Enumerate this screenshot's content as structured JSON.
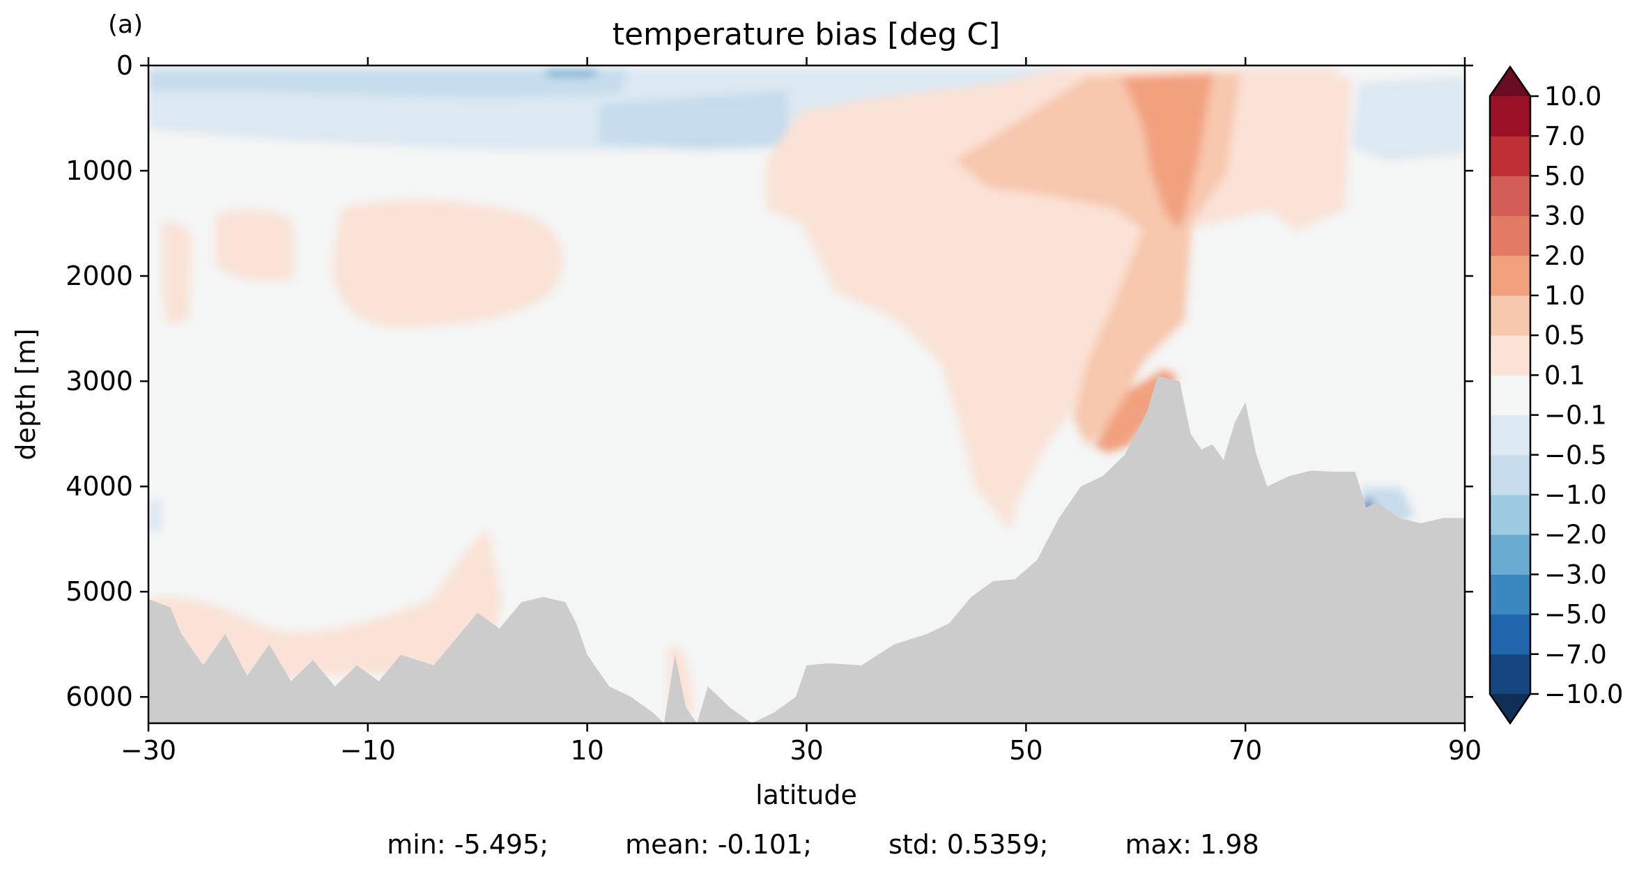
{
  "chart_data": {
    "type": "contourf",
    "panel_label": "(a)",
    "title": "temperature bias [deg C]",
    "xlabel": "latitude",
    "ylabel": "depth [m]",
    "xlim": [
      -30,
      90
    ],
    "ylim": [
      6250,
      0
    ],
    "y_inverted": true,
    "xticks": [
      -30,
      -10,
      10,
      30,
      50,
      70,
      90
    ],
    "xtick_labels": [
      "−30",
      "−10",
      "10",
      "30",
      "50",
      "70",
      "90"
    ],
    "yticks": [
      0,
      1000,
      2000,
      3000,
      4000,
      5000,
      6000
    ],
    "ytick_labels": [
      "0",
      "1000",
      "2000",
      "3000",
      "4000",
      "5000",
      "6000"
    ],
    "colorbar": {
      "extend": "both",
      "levels": [
        -10.0,
        -7.0,
        -5.0,
        -3.0,
        -2.0,
        -1.0,
        -0.5,
        -0.1,
        0.1,
        0.5,
        1.0,
        2.0,
        3.0,
        5.0,
        7.0,
        10.0
      ],
      "tick_labels": [
        "−10.0",
        "−7.0",
        "−5.0",
        "−3.0",
        "−2.0",
        "−1.0",
        "−0.5",
        "−0.1",
        "0.1",
        "0.5",
        "1.0",
        "2.0",
        "3.0",
        "5.0",
        "7.0",
        "10.0"
      ],
      "colors": [
        "#16467f",
        "#2166ac",
        "#3b88c0",
        "#6aabd2",
        "#9dc9e1",
        "#c6dcec",
        "#dce8f2",
        "#f4f5f5",
        "#fae2d6",
        "#f7c7ae",
        "#f2a17f",
        "#e27b63",
        "#d25f55",
        "#be3036",
        "#9a1128"
      ],
      "under_color": "#0f2f57",
      "over_color": "#6a0d21"
    },
    "land_color": "#cccccc",
    "colormap": "RdBu_r",
    "bathymetry": [
      [
        -30,
        5070
      ],
      [
        -28,
        5150
      ],
      [
        -27,
        5400
      ],
      [
        -25,
        5700
      ],
      [
        -23,
        5400
      ],
      [
        -21,
        5800
      ],
      [
        -19,
        5500
      ],
      [
        -17,
        5850
      ],
      [
        -15,
        5650
      ],
      [
        -13,
        5900
      ],
      [
        -11,
        5700
      ],
      [
        -9,
        5850
      ],
      [
        -7,
        5600
      ],
      [
        -4,
        5700
      ],
      [
        -2,
        5450
      ],
      [
        0,
        5200
      ],
      [
        2,
        5350
      ],
      [
        4,
        5100
      ],
      [
        6,
        5050
      ],
      [
        8,
        5100
      ],
      [
        9,
        5300
      ],
      [
        10,
        5600
      ],
      [
        12,
        5900
      ],
      [
        14,
        6000
      ],
      [
        16,
        6150
      ],
      [
        17,
        6250
      ],
      [
        18,
        5600
      ],
      [
        19,
        6100
      ],
      [
        20,
        6250
      ],
      [
        21,
        5900
      ],
      [
        23,
        6100
      ],
      [
        25,
        6250
      ],
      [
        27,
        6150
      ],
      [
        29,
        6000
      ],
      [
        30,
        5700
      ],
      [
        32,
        5680
      ],
      [
        35,
        5700
      ],
      [
        38,
        5500
      ],
      [
        41,
        5400
      ],
      [
        43,
        5300
      ],
      [
        45,
        5050
      ],
      [
        47,
        4900
      ],
      [
        49,
        4880
      ],
      [
        51,
        4700
      ],
      [
        53,
        4300
      ],
      [
        55,
        4000
      ],
      [
        57,
        3900
      ],
      [
        59,
        3700
      ],
      [
        61,
        3300
      ],
      [
        62,
        2950
      ],
      [
        64,
        3000
      ],
      [
        65,
        3500
      ],
      [
        66,
        3650
      ],
      [
        67,
        3600
      ],
      [
        68,
        3750
      ],
      [
        69,
        3400
      ],
      [
        70,
        3200
      ],
      [
        71,
        3700
      ],
      [
        72,
        4000
      ],
      [
        74,
        3900
      ],
      [
        76,
        3850
      ],
      [
        78,
        3860
      ],
      [
        80,
        3860
      ],
      [
        81,
        4200
      ],
      [
        82,
        4150
      ],
      [
        84,
        4300
      ],
      [
        86,
        4350
      ],
      [
        88,
        4300
      ],
      [
        90,
        4300
      ]
    ],
    "stats": {
      "min": "min: -5.495;",
      "mean": "mean: -0.101;",
      "std": "std: 0.5359;",
      "max": "max: 1.98"
    }
  }
}
